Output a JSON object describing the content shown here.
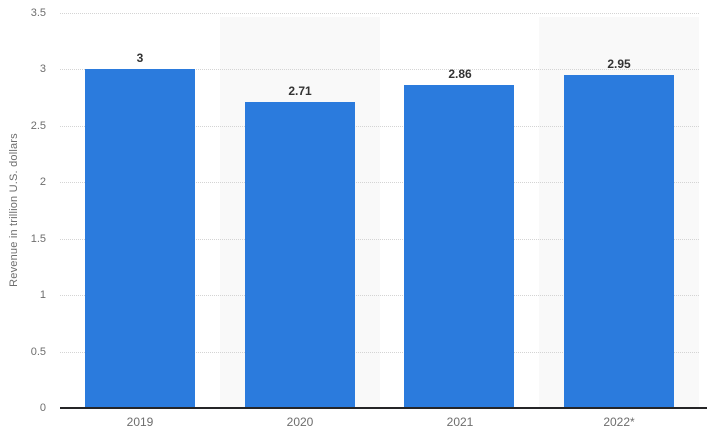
{
  "chart_data": {
    "type": "bar",
    "title": "",
    "categories": [
      "2019",
      "2020",
      "2021",
      "2022*"
    ],
    "values": [
      3,
      2.71,
      2.86,
      2.95
    ],
    "value_labels": [
      "3",
      "2.71",
      "2.86",
      "2.95"
    ],
    "xlabel": "",
    "ylabel": "Revenue in trillion U.S. dollars",
    "ylim": [
      0,
      3.5
    ],
    "ytick_interval": 0.5,
    "ytick_labels": [
      "0",
      "0.5",
      "1",
      "1.5",
      "2",
      "2.5",
      "3",
      "3.5"
    ],
    "grid": "horizontal-dotted",
    "legend": "none",
    "colors": {
      "bar": "#2b7bdd",
      "column_band": "#f9f9f9",
      "axis_line": "#252527",
      "gridline": "#d4d4d4",
      "tick_label": "#6e6e6e",
      "value_label": "#333333",
      "background": "#ffffff"
    },
    "shaded_column_indexes": [
      1,
      3
    ]
  }
}
